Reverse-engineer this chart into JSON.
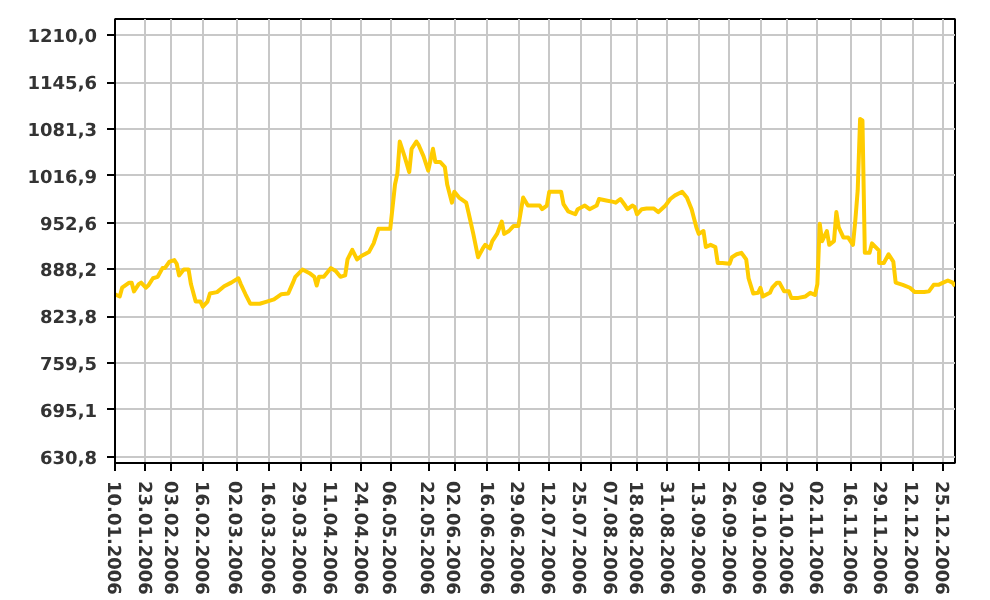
{
  "chart_data": {
    "type": "line",
    "color": "#ffcc00",
    "grid": true,
    "marker": "none",
    "line_style": "solid",
    "x": [
      "2006-01-10",
      "2006-01-12",
      "2006-01-13",
      "2006-01-16",
      "2006-01-17",
      "2006-01-18",
      "2006-01-20",
      "2006-01-21",
      "2006-01-23",
      "2006-01-24",
      "2006-01-26",
      "2006-01-28",
      "2006-01-30",
      "2006-01-31",
      "2006-02-02",
      "2006-02-04",
      "2006-02-05",
      "2006-02-06",
      "2006-02-08",
      "2006-02-10",
      "2006-02-11",
      "2006-02-13",
      "2006-02-15",
      "2006-02-16",
      "2006-02-18",
      "2006-02-19",
      "2006-02-22",
      "2006-02-25",
      "2006-02-28",
      "2006-03-03",
      "2006-03-04",
      "2006-03-06",
      "2006-03-08",
      "2006-03-12",
      "2006-03-15",
      "2006-03-18",
      "2006-03-21",
      "2006-03-24",
      "2006-03-26",
      "2006-03-27",
      "2006-03-30",
      "2006-04-02",
      "2006-04-04",
      "2006-04-05",
      "2006-04-06",
      "2006-04-08",
      "2006-04-11",
      "2006-04-13",
      "2006-04-15",
      "2006-04-17",
      "2006-04-18",
      "2006-04-20",
      "2006-04-22",
      "2006-04-24",
      "2006-04-27",
      "2006-04-29",
      "2006-05-01",
      "2006-05-04",
      "2006-05-06",
      "2006-05-08",
      "2006-05-09",
      "2006-05-10",
      "2006-05-12",
      "2006-05-14",
      "2006-05-15",
      "2006-05-17",
      "2006-05-18",
      "2006-05-20",
      "2006-05-22",
      "2006-05-23",
      "2006-05-24",
      "2006-05-25",
      "2006-05-27",
      "2006-05-29",
      "2006-05-30",
      "2006-06-01",
      "2006-06-02",
      "2006-06-04",
      "2006-06-07",
      "2006-06-08",
      "2006-06-10",
      "2006-06-12",
      "2006-06-14",
      "2006-06-15",
      "2006-06-17",
      "2006-06-18",
      "2006-06-20",
      "2006-06-22",
      "2006-06-23",
      "2006-06-25",
      "2006-06-27",
      "2006-06-29",
      "2006-07-01",
      "2006-07-03",
      "2006-07-06",
      "2006-07-08",
      "2006-07-09",
      "2006-07-11",
      "2006-07-12",
      "2006-07-14",
      "2006-07-17",
      "2006-07-18",
      "2006-07-20",
      "2006-07-23",
      "2006-07-24",
      "2006-07-27",
      "2006-07-29",
      "2006-08-01",
      "2006-08-02",
      "2006-08-05",
      "2006-08-08",
      "2006-08-09",
      "2006-08-11",
      "2006-08-13",
      "2006-08-14",
      "2006-08-16",
      "2006-08-17",
      "2006-08-18",
      "2006-08-20",
      "2006-08-22",
      "2006-08-25",
      "2006-08-27",
      "2006-08-30",
      "2006-09-01",
      "2006-09-03",
      "2006-09-06",
      "2006-09-08",
      "2006-09-10",
      "2006-09-12",
      "2006-09-13",
      "2006-09-15",
      "2006-09-16",
      "2006-09-18",
      "2006-09-20",
      "2006-09-21",
      "2006-09-23",
      "2006-09-26",
      "2006-09-27",
      "2006-09-29",
      "2006-10-01",
      "2006-10-03",
      "2006-10-04",
      "2006-10-06",
      "2006-10-08",
      "2006-10-09",
      "2006-10-10",
      "2006-10-13",
      "2006-10-14",
      "2006-10-16",
      "2006-10-17",
      "2006-10-19",
      "2006-10-21",
      "2006-10-22",
      "2006-10-25",
      "2006-10-28",
      "2006-10-30",
      "2006-11-01",
      "2006-11-02",
      "2006-11-03",
      "2006-11-04",
      "2006-11-06",
      "2006-11-07",
      "2006-11-09",
      "2006-11-10",
      "2006-11-11",
      "2006-11-13",
      "2006-11-15",
      "2006-11-17",
      "2006-11-18",
      "2006-11-19",
      "2006-11-20",
      "2006-11-21",
      "2006-11-22",
      "2006-11-24",
      "2006-11-25",
      "2006-11-28",
      "2006-11-28",
      "2006-11-30",
      "2006-12-02",
      "2006-12-04",
      "2006-12-05",
      "2006-12-08",
      "2006-12-11",
      "2006-12-13",
      "2006-12-17",
      "2006-12-19",
      "2006-12-21",
      "2006-12-23",
      "2006-12-25",
      "2006-12-27",
      "2006-12-29",
      "2006-12-30"
    ],
    "values": [
      854,
      851,
      863,
      870,
      870,
      858,
      868,
      870,
      863,
      866,
      876,
      878,
      890,
      890,
      899,
      901,
      896,
      880,
      888,
      888,
      868,
      844,
      844,
      837,
      844,
      855,
      857,
      865,
      870,
      876,
      868,
      854,
      841,
      841,
      844,
      847,
      854,
      855,
      870,
      878,
      888,
      883,
      878,
      866,
      878,
      878,
      890,
      886,
      878,
      880,
      902,
      915,
      902,
      907,
      912,
      924,
      944,
      944,
      944,
      1005,
      1020,
      1064,
      1044,
      1022,
      1054,
      1064,
      1059,
      1044,
      1024,
      1039,
      1054,
      1036,
      1036,
      1029,
      1005,
      980,
      995,
      987,
      980,
      966,
      937,
      905,
      917,
      922,
      917,
      927,
      937,
      954,
      937,
      941,
      948,
      948,
      987,
      976,
      976,
      976,
      971,
      976,
      995,
      995,
      995,
      978,
      968,
      964,
      971,
      976,
      971,
      976,
      985,
      983,
      981,
      980,
      985,
      976,
      971,
      976,
      974,
      964,
      971,
      972,
      972,
      967,
      976,
      985,
      990,
      995,
      987,
      971,
      946,
      937,
      941,
      919,
      922,
      919,
      897,
      897,
      896,
      905,
      909,
      911,
      902,
      876,
      855,
      856,
      863,
      851,
      856,
      863,
      870,
      870,
      858,
      858,
      849,
      849,
      851,
      856,
      853,
      868,
      951,
      927,
      941,
      922,
      927,
      967,
      946,
      932,
      932,
      922,
      956,
      997,
      1095,
      1093,
      911,
      911,
      924,
      914,
      897,
      897,
      909,
      899,
      870,
      867,
      863,
      857,
      857,
      858,
      867,
      867,
      870,
      873,
      870,
      865
    ],
    "xlim": [
      "2006-01-10",
      "2006-12-30"
    ],
    "ylim": [
      622.0,
      1232.5
    ],
    "xticks": [
      {
        "value": "2006-01-10",
        "label": "10.01.2006"
      },
      {
        "value": "2006-01-23",
        "label": "23.01.2006"
      },
      {
        "value": "2006-02-03",
        "label": "03.02.2006"
      },
      {
        "value": "2006-02-16",
        "label": "16.02.2006"
      },
      {
        "value": "2006-03-02",
        "label": "02.03.2006"
      },
      {
        "value": "2006-03-16",
        "label": "16.03.2006"
      },
      {
        "value": "2006-03-29",
        "label": "29.03.2006"
      },
      {
        "value": "2006-04-11",
        "label": "11.04.2006"
      },
      {
        "value": "2006-04-24",
        "label": "24.04.2006"
      },
      {
        "value": "2006-05-06",
        "label": "06.05.2006"
      },
      {
        "value": "2006-05-22",
        "label": "22.05.2006"
      },
      {
        "value": "2006-06-02",
        "label": "02.06.2006"
      },
      {
        "value": "2006-06-16",
        "label": "16.06.2006"
      },
      {
        "value": "2006-06-29",
        "label": "29.06.2006"
      },
      {
        "value": "2006-07-12",
        "label": "12.07.2006"
      },
      {
        "value": "2006-07-25",
        "label": "25.07.2006"
      },
      {
        "value": "2006-08-07",
        "label": "07.08.2006"
      },
      {
        "value": "2006-08-18",
        "label": "18.08.2006"
      },
      {
        "value": "2006-08-31",
        "label": "31.08.2006"
      },
      {
        "value": "2006-09-13",
        "label": "13.09.2006"
      },
      {
        "value": "2006-09-26",
        "label": "26.09.2006"
      },
      {
        "value": "2006-10-09",
        "label": "09.10.2006"
      },
      {
        "value": "2006-10-20",
        "label": "20.10.2006"
      },
      {
        "value": "2006-11-02",
        "label": "02.11.2006"
      },
      {
        "value": "2006-11-16",
        "label": "16.11.2006"
      },
      {
        "value": "2006-11-29",
        "label": "29.11.2006"
      },
      {
        "value": "2006-12-12",
        "label": "12.12.2006"
      },
      {
        "value": "2006-12-25",
        "label": "25.12.2006"
      }
    ],
    "yticks": [
      {
        "value": 630.8,
        "label": "630,8"
      },
      {
        "value": 695.1,
        "label": "695,1"
      },
      {
        "value": 759.5,
        "label": "759,5"
      },
      {
        "value": 823.8,
        "label": "823,8"
      },
      {
        "value": 888.2,
        "label": "888,2"
      },
      {
        "value": 952.6,
        "label": "952,6"
      },
      {
        "value": 1016.9,
        "label": "1016,9"
      },
      {
        "value": 1081.3,
        "label": "1081,3"
      },
      {
        "value": 1145.6,
        "label": "1145,6"
      },
      {
        "value": 1210.0,
        "label": "1210,0"
      }
    ]
  }
}
